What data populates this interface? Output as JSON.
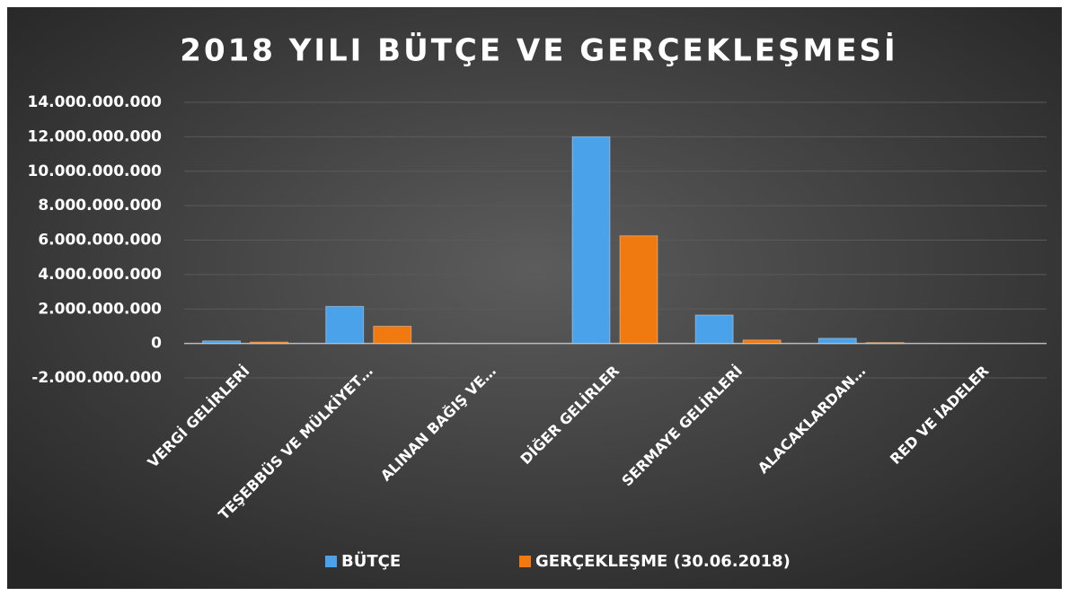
{
  "chart_data": {
    "type": "bar",
    "title": "2018 YILI BÜTÇE VE GERÇEKLEŞMESİ",
    "categories": [
      "VERGİ GELİRLERİ",
      "TEŞEBBÜS VE MÜLKİYET…",
      "ALINAN BAĞIŞ VE…",
      "DİĞER GELİRLER",
      "SERMAYE GELİRLERİ",
      "ALACAKLARDAN…",
      "RED VE İADELER"
    ],
    "series": [
      {
        "name": "BÜTÇE",
        "color": "#4aa3ea",
        "values": [
          150000000,
          2150000000,
          0,
          12000000000,
          1650000000,
          300000000,
          0
        ]
      },
      {
        "name": "GERÇEKLEŞME (30.06.2018)",
        "color": "#f07a10",
        "values": [
          80000000,
          1000000000,
          0,
          6250000000,
          200000000,
          50000000,
          0
        ]
      }
    ],
    "ylim": [
      -2000000000,
      14000000000
    ],
    "yticks": [
      {
        "value": -2000000000,
        "label": "-2.000.000.000"
      },
      0,
      {
        "value": 2000000000,
        "label": "2.000.000.000"
      },
      {
        "value": 4000000000,
        "label": "4.000.000.000"
      },
      {
        "value": 6000000000,
        "label": "6.000.000.000"
      },
      {
        "value": 8000000000,
        "label": "8.000.000.000"
      },
      {
        "value": 10000000000,
        "label": "10.000.000.000"
      },
      {
        "value": 12000000000,
        "label": "12.000.000.000"
      },
      {
        "value": 14000000000,
        "label": "14.000.000.000"
      }
    ],
    "grid": true,
    "legend": "bottom"
  }
}
